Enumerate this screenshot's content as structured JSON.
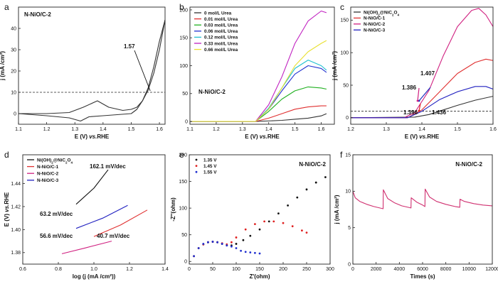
{
  "chart_data": [
    {
      "id": "a",
      "panel_label": "a",
      "type": "line",
      "title": "N-NiO/C-2",
      "xlabel": "E (V) vs.RHE",
      "ylabel": "j (mA /cm²)",
      "xlim": [
        1.1,
        1.62
      ],
      "ylim": [
        -5,
        50
      ],
      "xticks": [
        1.1,
        1.2,
        1.3,
        1.4,
        1.5,
        1.6
      ],
      "yticks": [
        0,
        10,
        20,
        30,
        40
      ],
      "ref_line_y": 10,
      "annotation": {
        "text": "1.57",
        "x": 1.57,
        "y": 10
      },
      "series": [
        {
          "color": "#333333",
          "x": [
            1.1,
            1.2,
            1.28,
            1.33,
            1.38,
            1.42,
            1.47,
            1.5,
            1.52,
            1.54,
            1.56,
            1.58,
            1.6,
            1.62
          ],
          "y": [
            0,
            0,
            0.5,
            3,
            6,
            3,
            1.5,
            2,
            3,
            6,
            12,
            22,
            34,
            44
          ]
        },
        {
          "color": "#333333",
          "x": [
            1.62,
            1.6,
            1.58,
            1.56,
            1.54,
            1.52,
            1.5,
            1.45,
            1.4,
            1.35,
            1.32,
            1.28,
            1.2,
            1.1
          ],
          "y": [
            44,
            30,
            19,
            11,
            6,
            2,
            0,
            -0.5,
            -1,
            -1.5,
            -3.5,
            -2,
            -1,
            0
          ]
        }
      ]
    },
    {
      "id": "b",
      "panel_label": "b",
      "type": "line",
      "title": "N-NiO/C-2",
      "xlabel": "E (V) vs.RHE",
      "ylabel": "",
      "xlim": [
        1.1,
        1.65
      ],
      "ylim": [
        -5,
        205
      ],
      "xticks": [
        1.1,
        1.2,
        1.3,
        1.4,
        1.5,
        1.6
      ],
      "yticks": [
        0,
        50,
        100,
        150,
        200
      ],
      "series": [
        {
          "name": "0 mol/L Urea",
          "color": "#333333",
          "x": [
            1.1,
            1.35,
            1.45,
            1.5,
            1.55,
            1.6,
            1.62
          ],
          "y": [
            0,
            0,
            2,
            4,
            6,
            10,
            14
          ]
        },
        {
          "name": "0.01 mol/L Urea",
          "color": "#e03030",
          "x": [
            1.1,
            1.35,
            1.4,
            1.45,
            1.5,
            1.55,
            1.6,
            1.62
          ],
          "y": [
            0,
            0,
            6,
            14,
            22,
            26,
            28,
            28
          ]
        },
        {
          "name": "0.03 mol/L Urea",
          "color": "#20b020",
          "x": [
            1.1,
            1.35,
            1.4,
            1.45,
            1.5,
            1.55,
            1.6,
            1.62
          ],
          "y": [
            0,
            0,
            18,
            40,
            55,
            62,
            60,
            58
          ]
        },
        {
          "name": "0.06 mol/L Urea",
          "color": "#2030d0",
          "x": [
            1.1,
            1.35,
            1.4,
            1.45,
            1.5,
            1.55,
            1.6,
            1.62
          ],
          "y": [
            0,
            0,
            22,
            55,
            85,
            100,
            95,
            88
          ]
        },
        {
          "name": "0.12 mol/L Urea",
          "color": "#20c0d0",
          "x": [
            1.1,
            1.35,
            1.4,
            1.45,
            1.5,
            1.55,
            1.6,
            1.62
          ],
          "y": [
            0,
            0,
            24,
            60,
            95,
            110,
            100,
            92
          ]
        },
        {
          "name": "0.33 mol/L Urea",
          "color": "#c020c0",
          "x": [
            1.1,
            1.35,
            1.4,
            1.45,
            1.5,
            1.55,
            1.6,
            1.62
          ],
          "y": [
            0,
            0,
            30,
            80,
            140,
            180,
            198,
            195
          ]
        },
        {
          "name": "0.66 mol/L Urea",
          "color": "#e8e030",
          "x": [
            1.1,
            1.35,
            1.4,
            1.45,
            1.5,
            1.55,
            1.6,
            1.62
          ],
          "y": [
            0,
            0,
            22,
            60,
            100,
            125,
            140,
            145
          ]
        }
      ]
    },
    {
      "id": "c",
      "panel_label": "c",
      "type": "line",
      "title": "",
      "xlabel": "E (V) vs.RHE",
      "ylabel": "j (mA /cm²)",
      "xlim": [
        1.2,
        1.6
      ],
      "ylim": [
        -10,
        170
      ],
      "xticks": [
        1.2,
        1.3,
        1.4,
        1.5,
        1.6
      ],
      "yticks": [
        0,
        50,
        100,
        150
      ],
      "ref_line_y": 10,
      "annotations": [
        {
          "text": "1.407",
          "color": "#2030c0"
        },
        {
          "text": "1.386",
          "color": "#d02080"
        },
        {
          "text": "1.396",
          "color": "#e02020"
        },
        {
          "text": "1.436",
          "color": "#111111"
        }
      ],
      "series": [
        {
          "name": "Ni(OH)₂@NiC₂O₄",
          "color": "#333333",
          "x": [
            1.2,
            1.38,
            1.42,
            1.46,
            1.5,
            1.55,
            1.6
          ],
          "y": [
            0,
            1,
            5,
            12,
            19,
            27,
            33
          ]
        },
        {
          "name": "N-NiO/C-1",
          "color": "#e03030",
          "x": [
            1.2,
            1.36,
            1.4,
            1.45,
            1.5,
            1.55,
            1.58,
            1.6
          ],
          "y": [
            0,
            0,
            12,
            40,
            68,
            85,
            90,
            88
          ]
        },
        {
          "name": "N-NiO/C-2",
          "color": "#d02080",
          "x": [
            1.2,
            1.35,
            1.38,
            1.42,
            1.46,
            1.5,
            1.54,
            1.56,
            1.58,
            1.6
          ],
          "y": [
            0,
            0,
            8,
            42,
            95,
            140,
            165,
            168,
            158,
            140
          ]
        },
        {
          "name": "N-NiO/C-3",
          "color": "#2020c0",
          "x": [
            1.2,
            1.36,
            1.4,
            1.45,
            1.5,
            1.55,
            1.58,
            1.6
          ],
          "y": [
            0,
            0,
            10,
            28,
            40,
            48,
            48,
            44
          ]
        }
      ]
    },
    {
      "id": "d",
      "panel_label": "d",
      "type": "line",
      "title": "",
      "xlabel": "log (j (mA /cm²))",
      "ylabel": "E (V) vs.RHE",
      "xlim": [
        0.6,
        1.4
      ],
      "ylim": [
        1.37,
        1.465
      ],
      "xticks": [
        0.6,
        0.8,
        1.0,
        1.2,
        1.4
      ],
      "yticks": [
        1.38,
        1.4,
        1.42,
        1.44
      ],
      "annotations": [
        {
          "text": "162.1 mV/dec",
          "color": "#111111"
        },
        {
          "text": "63.2 mV/dec",
          "color": "#2030c0"
        },
        {
          "text": "56.6 mV/dec",
          "color": "#e02020"
        },
        {
          "text": "40.7 mV/dec",
          "color": "#d02080"
        }
      ],
      "series": [
        {
          "name": "Ni(OH)₂@NiC₂O₄",
          "color": "#111111",
          "x": [
            0.9,
            1.0,
            1.08
          ],
          "y": [
            1.422,
            1.436,
            1.452
          ]
        },
        {
          "name": "N-NiO/C-1",
          "color": "#e03030",
          "x": [
            1.0,
            1.15,
            1.3
          ],
          "y": [
            1.394,
            1.404,
            1.417
          ]
        },
        {
          "name": "N-NiO/C-2",
          "color": "#d02080",
          "x": [
            0.82,
            0.95,
            1.1
          ],
          "y": [
            1.379,
            1.384,
            1.39
          ]
        },
        {
          "name": "N-NiO/C-3",
          "color": "#2020c0",
          "x": [
            0.9,
            1.05,
            1.19
          ],
          "y": [
            1.401,
            1.41,
            1.421
          ]
        }
      ]
    },
    {
      "id": "e",
      "panel_label": "e",
      "type": "scatter",
      "title": "N-NiO/C-2",
      "xlabel": "Z'(ohm)",
      "ylabel": "-Z''(ohm)",
      "xlim": [
        0,
        300
      ],
      "ylim": [
        -5,
        200
      ],
      "xticks": [
        0,
        50,
        100,
        150,
        200,
        250,
        300
      ],
      "yticks": [
        0,
        50,
        100,
        150,
        200
      ],
      "series": [
        {
          "name": "1.35 V",
          "color": "#111111",
          "x": [
            10,
            20,
            30,
            40,
            50,
            60,
            70,
            80,
            90,
            100,
            115,
            130,
            150,
            170,
            190,
            210,
            230,
            250,
            270,
            290
          ],
          "y": [
            10,
            25,
            32,
            36,
            37,
            36,
            33,
            30,
            30,
            33,
            40,
            48,
            60,
            75,
            90,
            105,
            120,
            135,
            148,
            158
          ]
        },
        {
          "name": "1.45 V",
          "color": "#e02020",
          "x": [
            10,
            20,
            30,
            40,
            50,
            60,
            70,
            80,
            90,
            100,
            120,
            140,
            160,
            180,
            200,
            220,
            240,
            250
          ],
          "y": [
            10,
            25,
            32,
            36,
            37,
            36,
            34,
            32,
            36,
            45,
            60,
            70,
            75,
            75,
            72,
            66,
            58,
            54
          ]
        },
        {
          "name": "1.55 V",
          "color": "#2030d0",
          "x": [
            10,
            20,
            30,
            40,
            50,
            60,
            70,
            80,
            90,
            100,
            110,
            120,
            130,
            140,
            150
          ],
          "y": [
            10,
            25,
            33,
            36,
            37,
            36,
            33,
            30,
            28,
            25,
            20,
            18,
            17,
            16,
            15
          ]
        }
      ]
    },
    {
      "id": "f",
      "panel_label": "f",
      "type": "line",
      "title": "N-NiO/C-2",
      "xlabel": "Times (s)",
      "ylabel": "j (mA /cm²)",
      "xlim": [
        0,
        12000
      ],
      "ylim": [
        0,
        15
      ],
      "xticks": [
        0,
        2000,
        4000,
        6000,
        8000,
        10000,
        12000
      ],
      "yticks": [
        0,
        5,
        10,
        15
      ],
      "series": [
        {
          "color": "#d03070",
          "x": [
            0,
            200,
            600,
            1200,
            1800,
            2600,
            2620,
            3000,
            3600,
            4200,
            5000,
            5020,
            5500,
            6000,
            6200,
            6220,
            6600,
            7200,
            8000,
            8800,
            9200,
            9220,
            9600,
            10400,
            11200,
            12000
          ],
          "y": [
            10,
            9.1,
            8.6,
            8.2,
            7.9,
            7.6,
            10.2,
            9.0,
            8.4,
            8.0,
            7.7,
            9.1,
            8.5,
            8.1,
            7.9,
            10.3,
            9.2,
            8.6,
            8.2,
            7.9,
            7.8,
            8.9,
            8.6,
            8.3,
            8.1,
            8.0
          ]
        }
      ]
    }
  ]
}
